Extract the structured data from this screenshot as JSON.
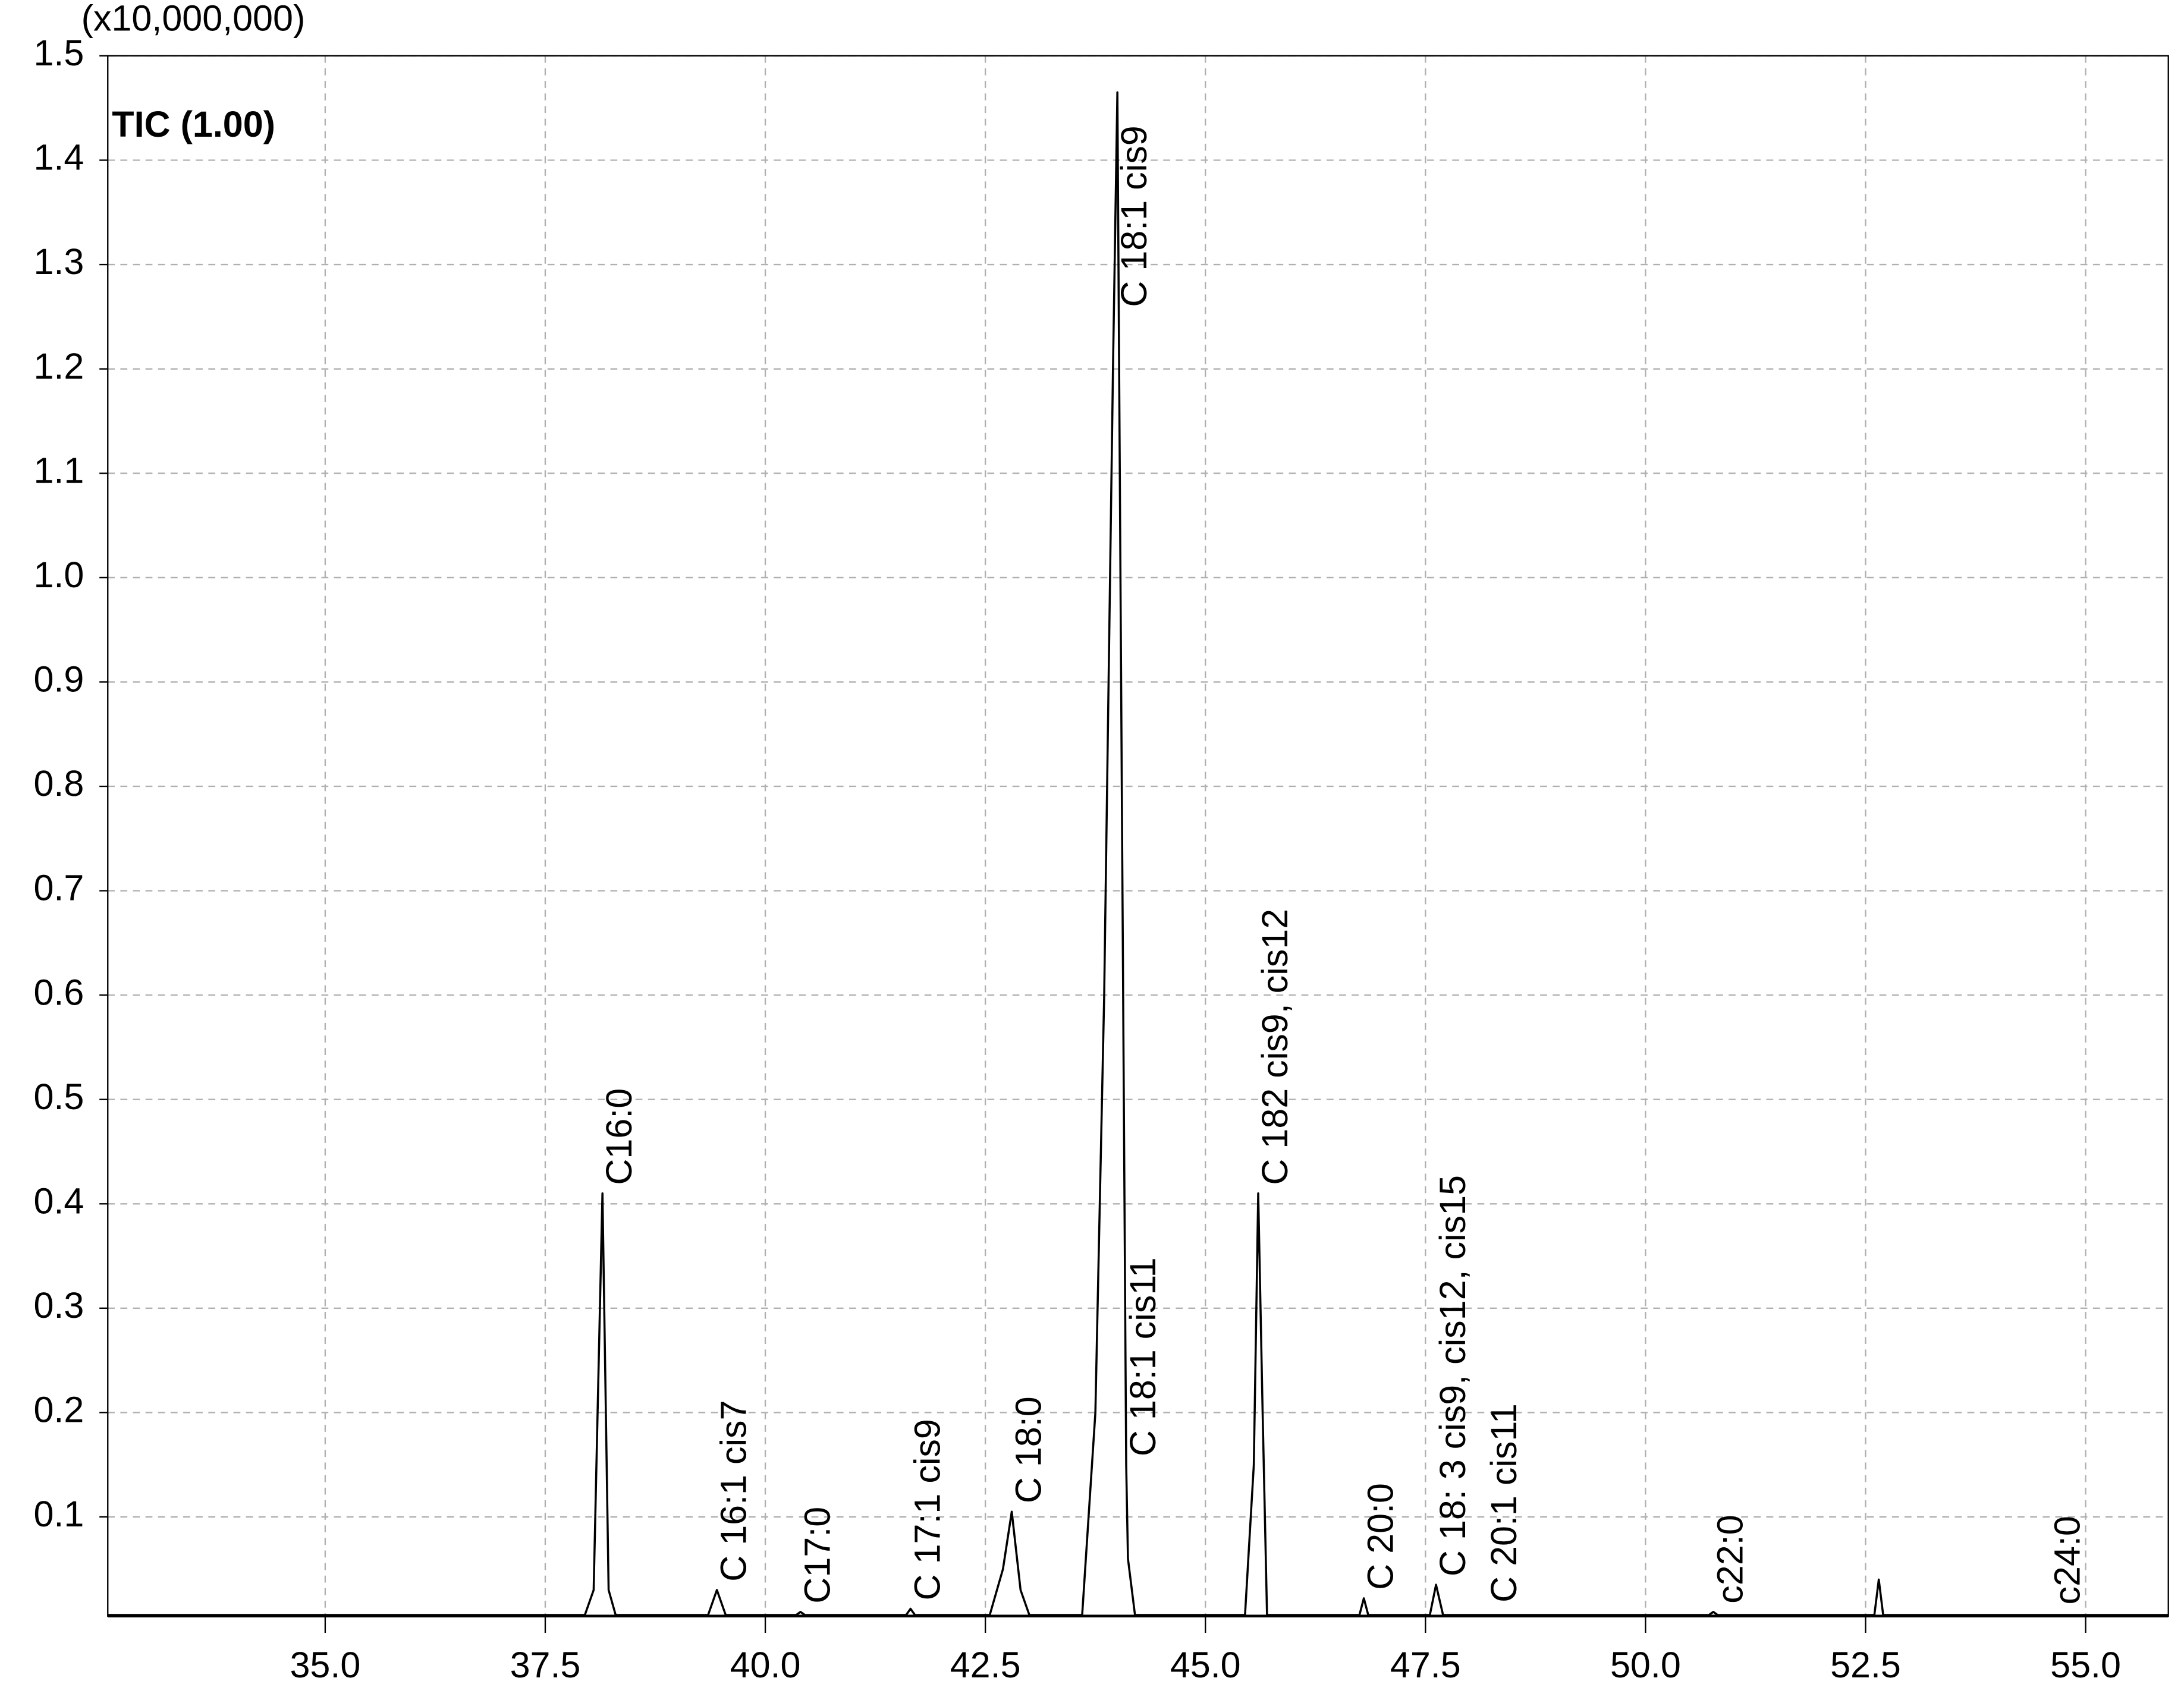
{
  "chart_data": {
    "type": "line",
    "axis_multiplier": "(x10,000,000)",
    "trace_label": "TIC (1.00)",
    "color": "#000000",
    "grid": true,
    "xlim": [
      32.53,
      55.94
    ],
    "ylim": [
      0.005,
      1.5
    ],
    "xticks": [
      {
        "value": 35,
        "label": "35.0"
      },
      37.5,
      {
        "value": 40,
        "label": "40.0"
      },
      42.5,
      {
        "value": 45,
        "label": "45.0"
      },
      47.5,
      {
        "value": 50,
        "label": "50.0"
      },
      52.5,
      {
        "value": 55,
        "label": "55.0"
      }
    ],
    "yticks": [
      0.1,
      0.2,
      0.3,
      0.4,
      0.5,
      0.6,
      0.7,
      0.8,
      0.9,
      {
        "value": 1,
        "label": "1.0"
      },
      1.1,
      1.2,
      1.3,
      1.4,
      1.5
    ],
    "x": [
      32.53,
      37.95,
      38.05,
      38.15,
      38.22,
      38.3,
      39.35,
      39.45,
      39.55,
      40.35,
      40.4,
      40.45,
      41.6,
      41.65,
      41.7,
      42.55,
      42.7,
      42.8,
      42.9,
      43.0,
      43.6,
      43.75,
      43.85,
      43.95,
      44.0,
      44.05,
      44.1,
      44.12,
      44.2,
      45.45,
      45.55,
      45.6,
      45.65,
      45.7,
      46.75,
      46.8,
      46.85,
      47.55,
      47.62,
      47.7,
      50.72,
      50.77,
      50.82,
      52.6,
      52.65,
      52.7,
      55.94
    ],
    "values": [
      0.006,
      0.006,
      0.03,
      0.41,
      0.03,
      0.006,
      0.006,
      0.03,
      0.006,
      0.006,
      0.009,
      0.006,
      0.006,
      0.012,
      0.006,
      0.006,
      0.05,
      0.105,
      0.03,
      0.006,
      0.006,
      0.2,
      0.6,
      1.2,
      1.465,
      0.8,
      0.15,
      0.06,
      0.006,
      0.006,
      0.15,
      0.41,
      0.2,
      0.006,
      0.006,
      0.022,
      0.006,
      0.006,
      0.035,
      0.006,
      0.006,
      0.009,
      0.006,
      0.006,
      0.04,
      0.006,
      0.006
    ],
    "peaks": [
      {
        "label": "C16:0",
        "x": 38.15,
        "y": 0.41
      },
      {
        "label": "C 16:1 cis7",
        "x": 39.45,
        "y": 0.03
      },
      {
        "label": "C17:0",
        "x": 40.4,
        "y": 0.009
      },
      {
        "label": "C 17:1 cis9",
        "x": 41.65,
        "y": 0.012
      },
      {
        "label": "C 18:0",
        "x": 42.8,
        "y": 0.105
      },
      {
        "label": "C 18:1 cis9",
        "x": 44.0,
        "y": 1.465
      },
      {
        "label": "C 18:1 cis11",
        "x": 44.1,
        "y": 0.15
      },
      {
        "label": "C 182 cis9, cis12",
        "x": 45.6,
        "y": 0.41
      },
      {
        "label": "C 20:0",
        "x": 46.8,
        "y": 0.022
      },
      {
        "label": "C 18: 3 cis9, cis12, cis15",
        "x": 47.62,
        "y": 0.035
      },
      {
        "label": "C 20:1 cis11",
        "x": 48.2,
        "y": 0.01
      },
      {
        "label": "c22:0",
        "x": 50.77,
        "y": 0.009
      },
      {
        "label": "c24:0",
        "x": 54.6,
        "y": 0.008
      }
    ]
  }
}
